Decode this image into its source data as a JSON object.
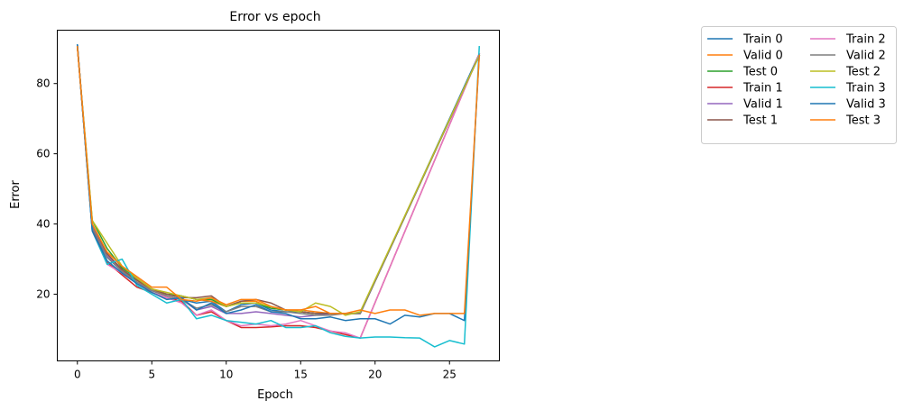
{
  "chart_data": {
    "type": "line",
    "title": "Error vs epoch",
    "xlabel": "Epoch",
    "ylabel": "Error",
    "xlim": [
      -1.35,
      28.35
    ],
    "ylim": [
      1.0,
      95.2
    ],
    "xticks": [
      0,
      5,
      10,
      15,
      20,
      25
    ],
    "yticks": [
      20,
      40,
      60,
      80
    ],
    "legend_placement": "outside-right",
    "legend_columns": 2,
    "grid": false,
    "series": [
      {
        "name": "Train 0",
        "color": "#1f77b4",
        "x": [
          0,
          1,
          2,
          3,
          4,
          5,
          6,
          7,
          8,
          9,
          10,
          11,
          12,
          13,
          14,
          15,
          16,
          17,
          18,
          19,
          27
        ],
        "y": [
          91.0,
          38.2,
          30.5,
          26.5,
          24.0,
          21.0,
          19.5,
          18.5,
          17.5,
          18.0,
          15.0,
          17.0,
          17.5,
          15.5,
          15.0,
          15.0,
          14.5,
          14.5,
          14.5,
          14.5,
          88.5
        ]
      },
      {
        "name": "Valid 0",
        "color": "#ff7f0e",
        "x": [
          0,
          1,
          2,
          3,
          4,
          5,
          6,
          7,
          8,
          9,
          10,
          11,
          12,
          13,
          14,
          15,
          16,
          17,
          18,
          19,
          27
        ],
        "y": [
          90.5,
          39.5,
          31.5,
          27.0,
          24.0,
          21.0,
          20.0,
          19.5,
          18.5,
          18.0,
          16.5,
          18.0,
          18.0,
          16.0,
          15.5,
          15.5,
          15.0,
          14.5,
          14.5,
          14.5,
          88.0
        ]
      },
      {
        "name": "Test 0",
        "color": "#2ca02c",
        "x": [
          0,
          1,
          2,
          3,
          4,
          5,
          6,
          7,
          8,
          9,
          10,
          11,
          12,
          13,
          14,
          15,
          16,
          17,
          18,
          19,
          27
        ],
        "y": [
          90.5,
          41.0,
          33.0,
          27.5,
          24.5,
          21.5,
          20.0,
          19.5,
          18.5,
          18.5,
          16.5,
          17.5,
          17.5,
          16.0,
          15.5,
          15.0,
          14.5,
          14.5,
          14.5,
          14.5,
          88.0
        ]
      },
      {
        "name": "Train 1",
        "color": "#d62728",
        "x": [
          0,
          1,
          2,
          3,
          4,
          5,
          6,
          7,
          8,
          9,
          10,
          11,
          12,
          13,
          14,
          15,
          16,
          17,
          18,
          19,
          27
        ],
        "y": [
          91.0,
          38.5,
          29.0,
          25.5,
          22.0,
          20.5,
          19.0,
          18.0,
          14.0,
          15.0,
          12.5,
          10.5,
          10.5,
          10.7,
          11.0,
          11.0,
          10.5,
          9.5,
          8.5,
          7.5,
          88.5
        ]
      },
      {
        "name": "Valid 1",
        "color": "#9467bd",
        "x": [
          0,
          1,
          2,
          3,
          4,
          5,
          6,
          7,
          8,
          9,
          10,
          11,
          12,
          13,
          14,
          15,
          16,
          17,
          18,
          19,
          27
        ],
        "y": [
          90.5,
          39.5,
          31.0,
          26.5,
          23.0,
          21.0,
          19.5,
          18.5,
          15.5,
          16.5,
          14.5,
          14.5,
          15.0,
          14.5,
          14.0,
          13.5,
          14.0,
          14.5,
          14.5,
          14.5,
          88.0
        ]
      },
      {
        "name": "Test 1",
        "color": "#8c564b",
        "x": [
          0,
          1,
          2,
          3,
          4,
          5,
          6,
          7,
          8,
          9,
          10,
          11,
          12,
          13,
          14,
          15,
          16,
          17,
          18,
          19,
          27
        ],
        "y": [
          90.5,
          40.0,
          31.5,
          27.0,
          24.0,
          21.5,
          20.0,
          19.0,
          19.0,
          19.5,
          16.5,
          18.0,
          18.5,
          17.5,
          15.5,
          15.0,
          14.5,
          14.5,
          14.5,
          14.5,
          88.0
        ]
      },
      {
        "name": "Train 2",
        "color": "#e377c2",
        "x": [
          0,
          1,
          2,
          3,
          4,
          5,
          6,
          7,
          8,
          9,
          10,
          11,
          12,
          13,
          14,
          15,
          16,
          17,
          18,
          19,
          27
        ],
        "y": [
          91.0,
          38.0,
          28.5,
          26.0,
          23.0,
          20.5,
          19.0,
          17.5,
          14.0,
          15.5,
          12.5,
          11.0,
          11.5,
          11.0,
          11.5,
          12.5,
          11.0,
          9.5,
          9.0,
          7.5,
          88.5
        ]
      },
      {
        "name": "Valid 2",
        "color": "#7f7f7f",
        "x": [
          0,
          1,
          2,
          3,
          4,
          5,
          6,
          7,
          8,
          9,
          10,
          11,
          12,
          13,
          14,
          15,
          16,
          17,
          18,
          19,
          27
        ],
        "y": [
          90.5,
          39.0,
          30.5,
          26.5,
          23.5,
          21.0,
          19.5,
          18.5,
          16.0,
          17.0,
          15.0,
          16.5,
          16.5,
          15.0,
          15.0,
          14.5,
          14.0,
          14.0,
          14.5,
          14.5,
          88.0
        ]
      },
      {
        "name": "Test 2",
        "color": "#bcbd22",
        "x": [
          0,
          1,
          2,
          3,
          4,
          5,
          6,
          7,
          8,
          9,
          10,
          11,
          12,
          13,
          14,
          15,
          16,
          17,
          18,
          19,
          27
        ],
        "y": [
          90.5,
          41.0,
          34.5,
          28.0,
          24.5,
          21.5,
          20.5,
          19.5,
          18.5,
          19.0,
          16.5,
          17.5,
          17.5,
          16.5,
          15.5,
          15.0,
          17.5,
          16.5,
          14.0,
          15.0,
          88.0
        ]
      },
      {
        "name": "Train 3",
        "color": "#17becf",
        "x": [
          0,
          1,
          2,
          3,
          4,
          5,
          6,
          7,
          8,
          9,
          10,
          11,
          12,
          13,
          14,
          15,
          16,
          17,
          18,
          19,
          20,
          21,
          22,
          23,
          24,
          25,
          26,
          27
        ],
        "y": [
          91.0,
          38.0,
          28.5,
          30.0,
          22.5,
          20.0,
          17.5,
          18.5,
          13.0,
          14.0,
          12.5,
          12.0,
          11.5,
          12.5,
          10.5,
          10.5,
          11.0,
          9.0,
          8.0,
          7.5,
          7.8,
          7.8,
          7.6,
          7.5,
          5.0,
          6.8,
          5.8,
          90.5
        ]
      },
      {
        "name": "Valid 3",
        "color": "#1f77b4",
        "x": [
          0,
          1,
          2,
          3,
          4,
          5,
          6,
          7,
          8,
          9,
          10,
          11,
          12,
          13,
          14,
          15,
          16,
          17,
          18,
          19,
          20,
          21,
          22,
          23,
          24,
          25,
          26,
          27
        ],
        "y": [
          91.0,
          38.0,
          29.5,
          26.0,
          23.0,
          20.5,
          18.5,
          19.0,
          15.5,
          17.5,
          14.5,
          15.5,
          17.0,
          15.0,
          14.5,
          13.0,
          13.0,
          13.5,
          12.5,
          13.0,
          13.0,
          11.5,
          14.0,
          13.5,
          14.5,
          14.5,
          12.5,
          88.0
        ]
      },
      {
        "name": "Test 3",
        "color": "#ff7f0e",
        "x": [
          0,
          1,
          2,
          3,
          4,
          5,
          6,
          7,
          8,
          9,
          10,
          11,
          12,
          13,
          14,
          15,
          16,
          17,
          18,
          19,
          20,
          21,
          22,
          23,
          24,
          25,
          26,
          27
        ],
        "y": [
          90.5,
          40.0,
          32.0,
          28.0,
          25.0,
          22.0,
          22.0,
          18.5,
          18.0,
          19.0,
          17.0,
          18.5,
          18.5,
          16.5,
          15.5,
          15.5,
          16.5,
          14.5,
          14.5,
          15.5,
          14.5,
          15.5,
          15.5,
          14.0,
          14.5,
          14.5,
          14.5,
          88.0
        ]
      }
    ]
  }
}
